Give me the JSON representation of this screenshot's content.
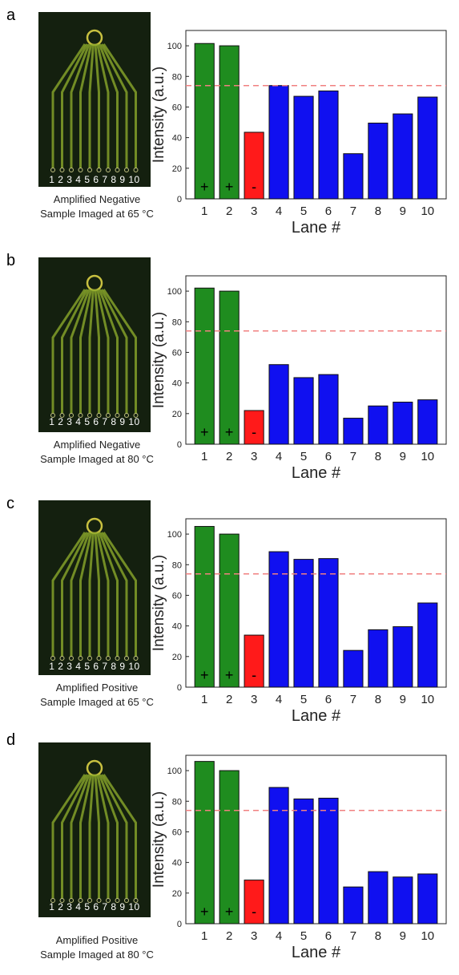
{
  "panels": [
    {
      "letter": "a",
      "lane_numbers": "1 2 3 4 5 6 7 8 9 10",
      "caption_line1": "Amplified Negative",
      "caption_line2": "Sample Imaged at 65 °C"
    },
    {
      "letter": "b",
      "lane_numbers": "1 2 3 4 5 6 7 8 9 10",
      "caption_line1": "Amplified Negative",
      "caption_line2": "Sample Imaged at 80 °C"
    },
    {
      "letter": "c",
      "lane_numbers": "1 2 3 4 5 6 7 8 9 10",
      "caption_line1": "Amplified Positive",
      "caption_line2": "Sample Imaged at 65 °C"
    },
    {
      "letter": "d",
      "lane_numbers": "1 2 3 4 5 6 7 8 9 10",
      "caption_line1": "Amplified Positive",
      "caption_line2": "Sample Imaged at 80 °C"
    }
  ],
  "colors": {
    "positive_control": "#1f8c1f",
    "negative_control": "#ff1a1a",
    "sample": "#1010f0",
    "threshold": "#f08080"
  },
  "chart_data": [
    {
      "type": "bar",
      "categories": [
        "1",
        "2",
        "3",
        "4",
        "5",
        "6",
        "7",
        "8",
        "9",
        "10"
      ],
      "values": [
        101.5,
        100,
        43.5,
        74,
        67,
        70.5,
        29.5,
        49.5,
        55.5,
        66.5
      ],
      "bar_colors": [
        "positive_control",
        "positive_control",
        "negative_control",
        "sample",
        "sample",
        "sample",
        "sample",
        "sample",
        "sample",
        "sample"
      ],
      "bar_marks": [
        "+",
        "+",
        "-",
        "",
        "",
        "",
        "",
        "",
        "",
        ""
      ],
      "threshold": 74,
      "xlabel": "Lane #",
      "ylabel": "Intensity (a.u.)",
      "ylim": [
        0,
        110
      ],
      "yticks": [
        0,
        20,
        40,
        60,
        80,
        100
      ]
    },
    {
      "type": "bar",
      "categories": [
        "1",
        "2",
        "3",
        "4",
        "5",
        "6",
        "7",
        "8",
        "9",
        "10"
      ],
      "values": [
        102,
        100,
        22,
        52,
        43.5,
        45.5,
        17,
        25,
        27.5,
        29
      ],
      "bar_colors": [
        "positive_control",
        "positive_control",
        "negative_control",
        "sample",
        "sample",
        "sample",
        "sample",
        "sample",
        "sample",
        "sample"
      ],
      "bar_marks": [
        "+",
        "+",
        "-",
        "",
        "",
        "",
        "",
        "",
        "",
        ""
      ],
      "threshold": 74,
      "xlabel": "Lane #",
      "ylabel": "Intensity (a.u.)",
      "ylim": [
        0,
        110
      ],
      "yticks": [
        0,
        20,
        40,
        60,
        80,
        100
      ]
    },
    {
      "type": "bar",
      "categories": [
        "1",
        "2",
        "3",
        "4",
        "5",
        "6",
        "7",
        "8",
        "9",
        "10"
      ],
      "values": [
        105,
        100,
        34,
        88.5,
        83.5,
        84,
        24,
        37.5,
        39.5,
        55
      ],
      "bar_colors": [
        "positive_control",
        "positive_control",
        "negative_control",
        "sample",
        "sample",
        "sample",
        "sample",
        "sample",
        "sample",
        "sample"
      ],
      "bar_marks": [
        "+",
        "+",
        "-",
        "",
        "",
        "",
        "",
        "",
        "",
        ""
      ],
      "threshold": 74,
      "xlabel": "Lane #",
      "ylabel": "Intensity (a.u.)",
      "ylim": [
        0,
        110
      ],
      "yticks": [
        0,
        20,
        40,
        60,
        80,
        100
      ]
    },
    {
      "type": "bar",
      "categories": [
        "1",
        "2",
        "3",
        "4",
        "5",
        "6",
        "7",
        "8",
        "9",
        "10"
      ],
      "values": [
        106,
        100,
        28.5,
        89,
        81.5,
        82,
        24,
        34,
        30.5,
        32.5
      ],
      "bar_colors": [
        "positive_control",
        "positive_control",
        "negative_control",
        "sample",
        "sample",
        "sample",
        "sample",
        "sample",
        "sample",
        "sample"
      ],
      "bar_marks": [
        "+",
        "+",
        "-",
        "",
        "",
        "",
        "",
        "",
        "",
        ""
      ],
      "threshold": 74,
      "xlabel": "Lane #",
      "ylabel": "Intensity (a.u.)",
      "ylim": [
        0,
        110
      ],
      "yticks": [
        0,
        20,
        40,
        60,
        80,
        100
      ]
    }
  ]
}
